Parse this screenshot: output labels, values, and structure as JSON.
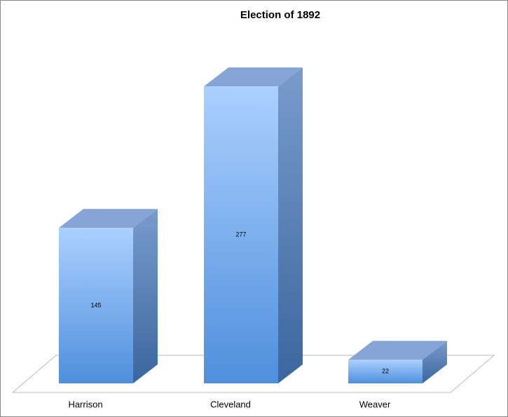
{
  "chart_data": {
    "type": "bar3d",
    "title": "Election of 1892",
    "categories": [
      "Harrison",
      "Cleveland",
      "Weaver"
    ],
    "values": [
      145,
      277,
      22
    ],
    "color": "#4f8fdc"
  }
}
